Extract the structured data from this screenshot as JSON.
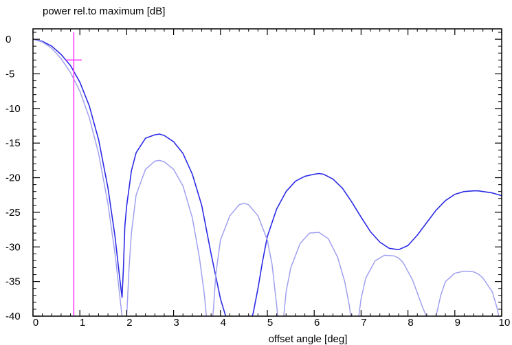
{
  "chart_data": {
    "type": "line",
    "title": "",
    "ylabel": "power rel.to maximum [dB]",
    "xlabel": "offset angle [deg]",
    "xlim": [
      0,
      10
    ],
    "ylim": [
      -40,
      1.5
    ],
    "x_ticks": [
      0,
      1,
      2,
      3,
      4,
      5,
      6,
      7,
      8,
      9,
      10
    ],
    "y_ticks": [
      0,
      -5,
      -10,
      -15,
      -20,
      -25,
      -30,
      -35,
      -40
    ],
    "grid": false,
    "series": [
      {
        "color": "#2a2ae6",
        "x": [
          0,
          0.2,
          0.4,
          0.6,
          0.8,
          1.0,
          1.2,
          1.4,
          1.6,
          1.75,
          1.85,
          1.9,
          1.93,
          1.96,
          2.0,
          2.1,
          2.2,
          2.4,
          2.6,
          2.7,
          2.8,
          3.0,
          3.2,
          3.4,
          3.6,
          3.8,
          4.0,
          4.2,
          4.4,
          4.6,
          4.7,
          4.8,
          4.9,
          5.0,
          5.2,
          5.4,
          5.6,
          5.8,
          6.0,
          6.1,
          6.2,
          6.4,
          6.6,
          6.8,
          7.0,
          7.2,
          7.4,
          7.6,
          7.8,
          8.0,
          8.2,
          8.4,
          8.6,
          8.8,
          9.0,
          9.2,
          9.4,
          9.5,
          9.6,
          9.8,
          10.0
        ],
        "y": [
          0,
          -0.3,
          -1.0,
          -2.2,
          -3.8,
          -6.2,
          -9.6,
          -14.5,
          -21.5,
          -28.5,
          -34.5,
          -37.3,
          -33.0,
          -27.0,
          -24.0,
          -19.0,
          -16.4,
          -14.3,
          -13.8,
          -13.7,
          -13.9,
          -14.8,
          -16.5,
          -19.5,
          -24.0,
          -31.0,
          -37.5,
          -42.0,
          -44.0,
          -42.0,
          -39.5,
          -36.0,
          -32.0,
          -28.5,
          -24.5,
          -22.0,
          -20.5,
          -19.8,
          -19.5,
          -19.4,
          -19.5,
          -20.2,
          -21.5,
          -23.5,
          -25.7,
          -27.8,
          -29.3,
          -30.2,
          -30.4,
          -29.8,
          -28.3,
          -26.5,
          -24.7,
          -23.3,
          -22.4,
          -22.0,
          -21.9,
          -21.9,
          -22.0,
          -22.2,
          -22.6
        ]
      },
      {
        "color": "#a0a0f0",
        "x": [
          0,
          0.2,
          0.4,
          0.6,
          0.8,
          1.0,
          1.2,
          1.4,
          1.6,
          1.75,
          1.85,
          1.9,
          1.93,
          1.97,
          2.0,
          2.05,
          2.1,
          2.2,
          2.4,
          2.6,
          2.7,
          2.8,
          3.0,
          3.2,
          3.4,
          3.55,
          3.65,
          3.7,
          3.75,
          3.8,
          3.85,
          3.9,
          4.0,
          4.2,
          4.4,
          4.5,
          4.6,
          4.8,
          5.0,
          5.1,
          5.15,
          5.2,
          5.25,
          5.3,
          5.35,
          5.4,
          5.5,
          5.7,
          5.9,
          6.1,
          6.3,
          6.5,
          6.65,
          6.75,
          6.8,
          6.85,
          6.9,
          6.95,
          7.0,
          7.1,
          7.3,
          7.5,
          7.7,
          7.8,
          7.9,
          8.1,
          8.3,
          8.45,
          8.5,
          8.55,
          8.6,
          8.65,
          8.7,
          8.8,
          9.0,
          9.2,
          9.4,
          9.5,
          9.6,
          9.8,
          9.9,
          9.95,
          10.0
        ],
        "y": [
          0,
          -0.4,
          -1.3,
          -2.8,
          -4.8,
          -7.5,
          -11.3,
          -16.5,
          -23.8,
          -31.0,
          -37.0,
          -40.0,
          -42.0,
          -42.0,
          -40.0,
          -33.0,
          -28.0,
          -22.5,
          -18.8,
          -17.6,
          -17.5,
          -17.7,
          -18.8,
          -21.2,
          -25.8,
          -31.5,
          -36.5,
          -40.0,
          -42.0,
          -42.0,
          -39.0,
          -34.0,
          -29.0,
          -25.5,
          -23.9,
          -23.7,
          -23.9,
          -25.5,
          -29.0,
          -32.5,
          -35.5,
          -38.5,
          -42.0,
          -42.0,
          -40.0,
          -36.5,
          -33.0,
          -29.5,
          -28.0,
          -27.9,
          -28.8,
          -31.5,
          -35.0,
          -38.5,
          -41.0,
          -42.0,
          -42.0,
          -40.0,
          -37.5,
          -34.5,
          -32.0,
          -31.2,
          -31.3,
          -31.6,
          -32.3,
          -34.8,
          -38.5,
          -41.0,
          -42.0,
          -42.0,
          -40.0,
          -38.5,
          -37.0,
          -35.0,
          -33.8,
          -33.5,
          -33.6,
          -33.9,
          -34.5,
          -36.5,
          -38.8,
          -40.5,
          -42.0
        ]
      }
    ],
    "marker": {
      "color": "#ff40ff",
      "x": 0.87,
      "y_from": 1.0,
      "y_to": -40,
      "cross_y": -3.0,
      "cross_halfwidth": 0.17
    }
  }
}
